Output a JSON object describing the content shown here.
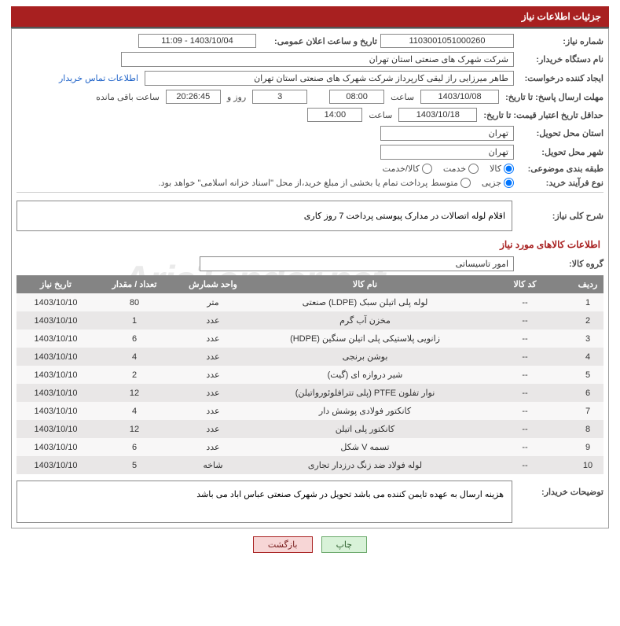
{
  "header": {
    "title": "جزئیات اطلاعات نیاز"
  },
  "fields": {
    "need_number_label": "شماره نیاز:",
    "need_number": "1103001051000260",
    "announce_label": "تاریخ و ساعت اعلان عمومی:",
    "announce_value": "1403/10/04 - 11:09",
    "buyer_org_label": "نام دستگاه خریدار:",
    "buyer_org": "شرکت شهرک های صنعتی استان تهران",
    "requester_label": "ایجاد کننده درخواست:",
    "requester": "طاهر  میرزایی راز لیقی کارپرداز شرکت شهرک های صنعتی استان تهران",
    "contact_link": "اطلاعات تماس خریدار",
    "deadline_label": "مهلت ارسال پاسخ: تا تاریخ:",
    "deadline_date": "1403/10/08",
    "time_label": "ساعت",
    "deadline_time": "08:00",
    "days": "3",
    "days_and": "روز و",
    "countdown": "20:26:45",
    "remaining": "ساعت باقی مانده",
    "validity_label": "حداقل تاریخ اعتبار قیمت: تا تاریخ:",
    "validity_date": "1403/10/18",
    "validity_time": "14:00",
    "province_label": "استان محل تحویل:",
    "province": "تهران",
    "city_label": "شهر محل تحویل:",
    "city": "تهران",
    "category_label": "طبقه بندی موضوعی:",
    "purchase_type_label": "نوع فرآیند خرید:",
    "payment_note": "پرداخت تمام یا بخشی از مبلغ خرید،از محل \"اسناد خزانه اسلامی\" خواهد بود.",
    "desc_label": "شرح کلی نیاز:",
    "desc_text": "اقلام لوله اتصالات در مدارک پیوستی  پرداخت 7 روز کاری",
    "goods_section": "اطلاعات کالاهای مورد نیاز",
    "group_label": "گروه کالا:",
    "group_value": "امور تاسیساتی",
    "buyer_notes_label": "توضیحات خریدار:",
    "buyer_notes": "هزینه ارسال  به عهده تایمن کننده می باشد  تحویل در شهرک صنعتی عباس اباد می باشد"
  },
  "radios": {
    "category": [
      {
        "label": "کالا",
        "checked": true
      },
      {
        "label": "خدمت",
        "checked": false
      },
      {
        "label": "کالا/خدمت",
        "checked": false
      }
    ],
    "purchase": [
      {
        "label": "جزیی",
        "checked": true
      },
      {
        "label": "متوسط",
        "checked": false
      }
    ]
  },
  "table": {
    "headers": [
      "ردیف",
      "کد کالا",
      "نام کالا",
      "واحد شمارش",
      "تعداد / مقدار",
      "تاریخ نیاز"
    ],
    "rows": [
      [
        "1",
        "--",
        "لوله پلی اتیلن سبک (LDPE) صنعتی",
        "متر",
        "80",
        "1403/10/10"
      ],
      [
        "2",
        "--",
        "مخزن آب گرم",
        "عدد",
        "1",
        "1403/10/10"
      ],
      [
        "3",
        "--",
        "زانویی پلاستیکی پلی اتیلن سنگین (HDPE)",
        "عدد",
        "6",
        "1403/10/10"
      ],
      [
        "4",
        "--",
        "بوشن برنجی",
        "عدد",
        "4",
        "1403/10/10"
      ],
      [
        "5",
        "--",
        "شیر دروازه ای (گیت)",
        "عدد",
        "2",
        "1403/10/10"
      ],
      [
        "6",
        "--",
        "نوار تفلون PTFE (پلی تترافلوئورواتیلن)",
        "عدد",
        "12",
        "1403/10/10"
      ],
      [
        "7",
        "--",
        "کانکتور فولادی پوشش دار",
        "عدد",
        "4",
        "1403/10/10"
      ],
      [
        "8",
        "--",
        "کانکتور پلی اتیلن",
        "عدد",
        "12",
        "1403/10/10"
      ],
      [
        "9",
        "--",
        "تسمه V شکل",
        "عدد",
        "6",
        "1403/10/10"
      ],
      [
        "10",
        "--",
        "لوله فولاد ضد زنگ درزدار تجاری",
        "شاخه",
        "5",
        "1403/10/10"
      ]
    ],
    "col_widths": [
      "40px",
      "120px",
      "auto",
      "100px",
      "100px",
      "100px"
    ]
  },
  "buttons": {
    "print": "چاپ",
    "back": "بازگشت"
  },
  "watermark": "AriaTender.net",
  "colors": {
    "primary": "#a82020",
    "header_bg": "#848484",
    "row_odd": "#f8f7f7",
    "row_even": "#e9e7e7",
    "link": "#1e62c8",
    "border": "#888888"
  }
}
